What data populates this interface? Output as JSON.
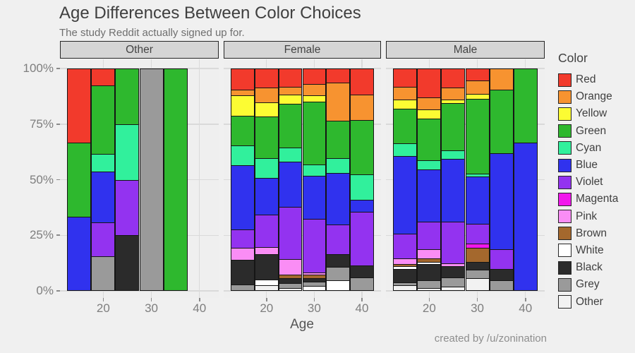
{
  "title": "Age Differences Between Color Choices",
  "subtitle": "The study Reddit actually signed up for.",
  "credit": "created by /u/zonination",
  "chart_data": {
    "type": "bar",
    "stacking": "percent",
    "title": "Age Differences Between Color Choices",
    "subtitle": "The study Reddit actually signed up for.",
    "xlabel": "Age",
    "ylabel": "",
    "x_domain": [
      11,
      44
    ],
    "x_ticks": [
      20,
      30,
      40
    ],
    "y_ticks": [
      {
        "pct": 0,
        "label": "0%"
      },
      {
        "pct": 25,
        "label": "25%"
      },
      {
        "pct": 50,
        "label": "50%"
      },
      {
        "pct": 75,
        "label": "75%"
      },
      {
        "pct": 100,
        "label": "100%"
      }
    ],
    "bin_width_years": 5,
    "grid": "major",
    "legend_position": "right",
    "legend_title": "Color",
    "legend_order": [
      "Red",
      "Orange",
      "Yellow",
      "Green",
      "Cyan",
      "Blue",
      "Violet",
      "Magenta",
      "Pink",
      "Brown",
      "White",
      "Black",
      "Grey",
      "Other"
    ],
    "palette": {
      "Red": "#F23A2C",
      "Orange": "#F79330",
      "Yellow": "#FCFC33",
      "Green": "#2EB82E",
      "Cyan": "#31F09C",
      "Blue": "#3032EE",
      "Violet": "#9333F0",
      "Magenta": "#F117EC",
      "Pink": "#FA8DF5",
      "Brown": "#A4682D",
      "White": "#FFFFFF",
      "Black": "#2B2B2B",
      "Grey": "#9A9A9A",
      "Other": "#F2F2F2"
    },
    "facets": [
      {
        "label": "Other",
        "bars": [
          {
            "age": 15,
            "segments": [
              [
                "Red",
                33.3
              ],
              [
                "Green",
                33.4
              ],
              [
                "Blue",
                33.3
              ]
            ]
          },
          {
            "age": 20,
            "segments": [
              [
                "Red",
                7.7
              ],
              [
                "Green",
                30.8
              ],
              [
                "Cyan",
                7.7
              ],
              [
                "Blue",
                23.0
              ],
              [
                "Violet",
                15.4
              ],
              [
                "Grey",
                15.4
              ]
            ]
          },
          {
            "age": 25,
            "segments": [
              [
                "Green",
                25
              ],
              [
                "Cyan",
                25
              ],
              [
                "Violet",
                25
              ],
              [
                "Black",
                25
              ]
            ]
          },
          {
            "age": 30,
            "segments": [
              [
                "Grey",
                100
              ]
            ]
          },
          {
            "age": 35,
            "segments": [
              [
                "Green",
                100
              ]
            ]
          }
        ]
      },
      {
        "label": "Female",
        "bars": [
          {
            "age": 15,
            "segments": [
              [
                "Red",
                9.6
              ],
              [
                "Orange",
                2.5
              ],
              [
                "Yellow",
                9.3
              ],
              [
                "Green",
                13.2
              ],
              [
                "Cyan",
                8.8
              ],
              [
                "Blue",
                29.1
              ],
              [
                "Violet",
                8.1
              ],
              [
                "Pink",
                5.5
              ],
              [
                "Black",
                11.0
              ],
              [
                "Grey",
                2.9
              ]
            ]
          },
          {
            "age": 20,
            "segments": [
              [
                "Red",
                8.5
              ],
              [
                "Orange",
                6.8
              ],
              [
                "Yellow",
                6.2
              ],
              [
                "Green",
                18.7
              ],
              [
                "Cyan",
                9.0
              ],
              [
                "Blue",
                16.4
              ],
              [
                "Violet",
                14.8
              ],
              [
                "Pink",
                3.2
              ],
              [
                "Black",
                11.3
              ],
              [
                "White",
                2.6
              ],
              [
                "Other",
                2.5
              ]
            ]
          },
          {
            "age": 25,
            "segments": [
              [
                "Red",
                8.1
              ],
              [
                "Orange",
                3.5
              ],
              [
                "Yellow",
                4.4
              ],
              [
                "Green",
                19.6
              ],
              [
                "Cyan",
                6.3
              ],
              [
                "Blue",
                20.4
              ],
              [
                "Violet",
                23.5
              ],
              [
                "Pink",
                6.9
              ],
              [
                "Brown",
                1.5
              ],
              [
                "Black",
                2.4
              ],
              [
                "Grey",
                2.0
              ],
              [
                "Other",
                1.4
              ]
            ]
          },
          {
            "age": 30,
            "segments": [
              [
                "Red",
                7.0
              ],
              [
                "Orange",
                5.2
              ],
              [
                "Yellow",
                2.6
              ],
              [
                "Green",
                28.4
              ],
              [
                "Cyan",
                5.0
              ],
              [
                "Blue",
                19.4
              ],
              [
                "Violet",
                24.0
              ],
              [
                "Pink",
                1.1
              ],
              [
                "Brown",
                1.6
              ],
              [
                "Black",
                1.6
              ],
              [
                "Grey",
                1.8
              ],
              [
                "White",
                2.3
              ]
            ]
          },
          {
            "age": 35,
            "segments": [
              [
                "Red",
                6.5
              ],
              [
                "Orange",
                16.9
              ],
              [
                "Green",
                16.9
              ],
              [
                "Cyan",
                6.8
              ],
              [
                "Blue",
                23.1
              ],
              [
                "Violet",
                13.2
              ],
              [
                "Black",
                5.8
              ],
              [
                "Grey",
                6.1
              ],
              [
                "White",
                4.7
              ]
            ]
          },
          {
            "age": 40,
            "segments": [
              [
                "Red",
                11.7
              ],
              [
                "Orange",
                11.6
              ],
              [
                "Green",
                24.3
              ],
              [
                "Cyan",
                11.6
              ],
              [
                "Blue",
                5.3
              ],
              [
                "Violet",
                24.0
              ],
              [
                "Black",
                5.6
              ],
              [
                "Grey",
                5.9
              ]
            ]
          }
        ]
      },
      {
        "label": "Male",
        "bars": [
          {
            "age": 15,
            "segments": [
              [
                "Red",
                8.3
              ],
              [
                "Orange",
                5.6
              ],
              [
                "Yellow",
                4.2
              ],
              [
                "Green",
                15.6
              ],
              [
                "Cyan",
                5.6
              ],
              [
                "Blue",
                35.1
              ],
              [
                "Violet",
                11.1
              ],
              [
                "Pink",
                2.5
              ],
              [
                "Brown",
                0.9
              ],
              [
                "White",
                1.1
              ],
              [
                "Black",
                6.3
              ],
              [
                "Grey",
                1.3
              ],
              [
                "Other",
                2.4
              ]
            ]
          },
          {
            "age": 20,
            "segments": [
              [
                "Red",
                13.0
              ],
              [
                "Orange",
                5.5
              ],
              [
                "Yellow",
                4.0
              ],
              [
                "Green",
                18.8
              ],
              [
                "Cyan",
                3.9
              ],
              [
                "Blue",
                23.6
              ],
              [
                "Violet",
                12.4
              ],
              [
                "Pink",
                4.2
              ],
              [
                "Brown",
                1.4
              ],
              [
                "White",
                1.1
              ],
              [
                "Black",
                7.4
              ],
              [
                "Grey",
                3.4
              ],
              [
                "Other",
                1.2
              ]
            ]
          },
          {
            "age": 25,
            "segments": [
              [
                "Red",
                8.6
              ],
              [
                "Orange",
                5.3
              ],
              [
                "Yellow",
                1.5
              ],
              [
                "Green",
                21.5
              ],
              [
                "Cyan",
                3.7
              ],
              [
                "Blue",
                28.4
              ],
              [
                "Violet",
                18.7
              ],
              [
                "Pink",
                1.3
              ],
              [
                "Black",
                5.0
              ],
              [
                "Grey",
                4.1
              ],
              [
                "Other",
                1.9
              ]
            ]
          },
          {
            "age": 30,
            "segments": [
              [
                "Red",
                5.4
              ],
              [
                "Orange",
                6.0
              ],
              [
                "Yellow",
                2.4
              ],
              [
                "Green",
                33.4
              ],
              [
                "Cyan",
                1.3
              ],
              [
                "Blue",
                21.4
              ],
              [
                "Violet",
                8.8
              ],
              [
                "Magenta",
                1.9
              ],
              [
                "Brown",
                6.3
              ],
              [
                "Black",
                3.7
              ],
              [
                "Grey",
                3.6
              ],
              [
                "Other",
                5.8
              ]
            ]
          },
          {
            "age": 35,
            "segments": [
              [
                "Orange",
                9.6
              ],
              [
                "Green",
                28.6
              ],
              [
                "Blue",
                43.1
              ],
              [
                "Violet",
                9.0
              ],
              [
                "Black",
                4.8
              ],
              [
                "Grey",
                4.9
              ]
            ]
          },
          {
            "age": 40,
            "segments": [
              [
                "Green",
                33.3
              ],
              [
                "Blue",
                66.7
              ]
            ]
          }
        ]
      }
    ]
  }
}
